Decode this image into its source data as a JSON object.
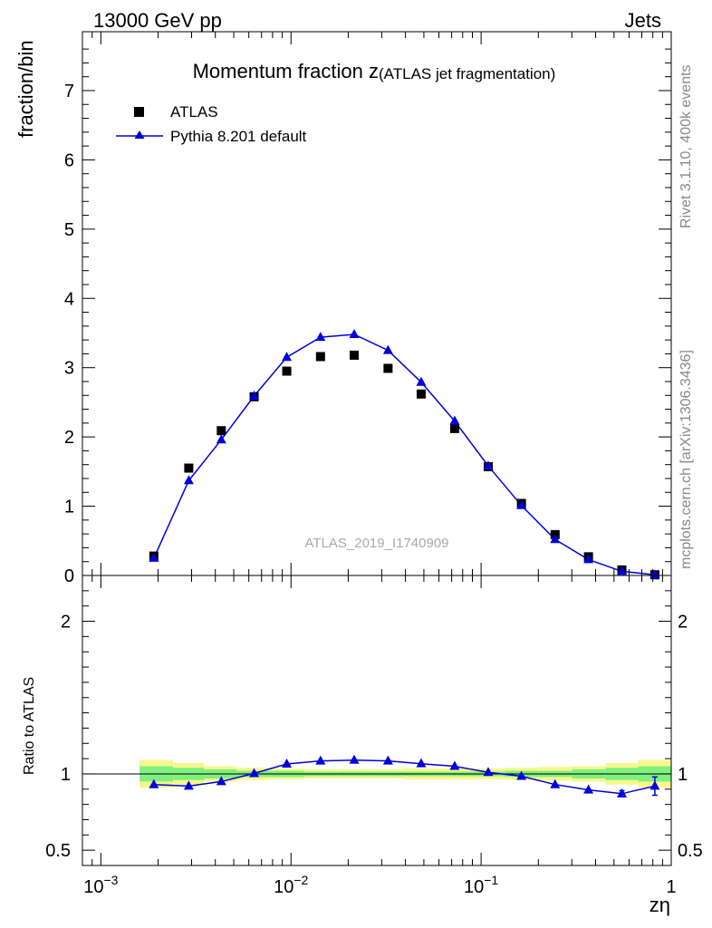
{
  "header": {
    "left": "13000 GeV pp",
    "right": "Jets"
  },
  "side_text": {
    "rivet": "Rivet 3.1.10,  400k events",
    "mcplots": "mcplots.cern.ch [arXiv:1306.3436]"
  },
  "chart_data": [
    {
      "type": "scatter",
      "title": "Momentum fraction z",
      "subtitle": "(ATLAS jet fragmentation)",
      "ylabel": "fraction/bin",
      "watermark": "ATLAS_2019_I1740909",
      "x_scale": "log",
      "xlim": [
        0.0008,
        1
      ],
      "ylim": [
        0,
        7.85
      ],
      "y_ticks": [
        "0",
        "1",
        "2",
        "3",
        "4",
        "5",
        "6",
        "7"
      ],
      "legend_position": "top-left",
      "series": [
        {
          "name": "ATLAS",
          "marker": "square",
          "color": "#000000",
          "x": [
            0.0019,
            0.0029,
            0.0043,
            0.0064,
            0.0095,
            0.0143,
            0.0215,
            0.0324,
            0.0484,
            0.0726,
            0.109,
            0.163,
            0.245,
            0.367,
            0.55,
            0.82
          ],
          "y": [
            0.28,
            1.55,
            2.09,
            2.58,
            2.95,
            3.16,
            3.18,
            2.99,
            2.62,
            2.12,
            1.57,
            1.04,
            0.59,
            0.27,
            0.08,
            0.01
          ]
        },
        {
          "name": "Pythia 8.201 default",
          "marker": "triangle",
          "color": "#0000dd",
          "x": [
            0.0019,
            0.0029,
            0.0043,
            0.0064,
            0.0095,
            0.0143,
            0.0215,
            0.0324,
            0.0484,
            0.0726,
            0.109,
            0.163,
            0.245,
            0.367,
            0.55,
            0.82
          ],
          "y": [
            0.25,
            1.37,
            1.96,
            2.59,
            3.15,
            3.44,
            3.48,
            3.25,
            2.79,
            2.23,
            1.58,
            1.01,
            0.52,
            0.23,
            0.06,
            0.01
          ]
        }
      ]
    },
    {
      "type": "line",
      "ylabel": "Ratio to ATLAS",
      "xlabel": "zη",
      "x_scale": "log",
      "xlim": [
        0.0008,
        1
      ],
      "ylim": [
        0.4,
        2.3
      ],
      "y_ticks": [
        "0.5",
        "1",
        "2"
      ],
      "x_ticks": [
        "10",
        "10",
        "10",
        "1"
      ],
      "x_tick_exponents": [
        "−3",
        "−2",
        "−1",
        ""
      ],
      "band_edges": [
        0.0016,
        0.0024,
        0.0035,
        0.0052,
        0.0078,
        0.0117,
        0.0175,
        0.0263,
        0.0395,
        0.059,
        0.089,
        0.133,
        0.2,
        0.3,
        0.45,
        0.67,
        1.0
      ],
      "band_inner": [
        0.05,
        0.04,
        0.03,
        0.02,
        0.02,
        0.015,
        0.015,
        0.015,
        0.015,
        0.015,
        0.015,
        0.02,
        0.02,
        0.03,
        0.04,
        0.05
      ],
      "band_outer": [
        0.09,
        0.07,
        0.05,
        0.04,
        0.035,
        0.03,
        0.03,
        0.03,
        0.035,
        0.035,
        0.035,
        0.04,
        0.045,
        0.05,
        0.07,
        0.09
      ],
      "series": [
        {
          "name": "Pythia 8.201 default",
          "color": "#0000dd",
          "x": [
            0.0019,
            0.0029,
            0.0043,
            0.0064,
            0.0095,
            0.0143,
            0.0215,
            0.0324,
            0.0484,
            0.0726,
            0.109,
            0.163,
            0.245,
            0.367,
            0.55,
            0.82
          ],
          "y": [
            0.93,
            0.92,
            0.95,
            1.003,
            1.065,
            1.085,
            1.09,
            1.085,
            1.067,
            1.05,
            1.01,
            0.985,
            0.93,
            0.895,
            0.87,
            0.92
          ],
          "err": [
            0,
            0,
            0,
            0,
            0,
            0,
            0,
            0,
            0,
            0,
            0,
            0,
            0,
            0,
            0.02,
            0.06
          ]
        }
      ],
      "colors": {
        "band_inner": "#7ef07e",
        "band_outer": "#f7f78a"
      }
    }
  ]
}
